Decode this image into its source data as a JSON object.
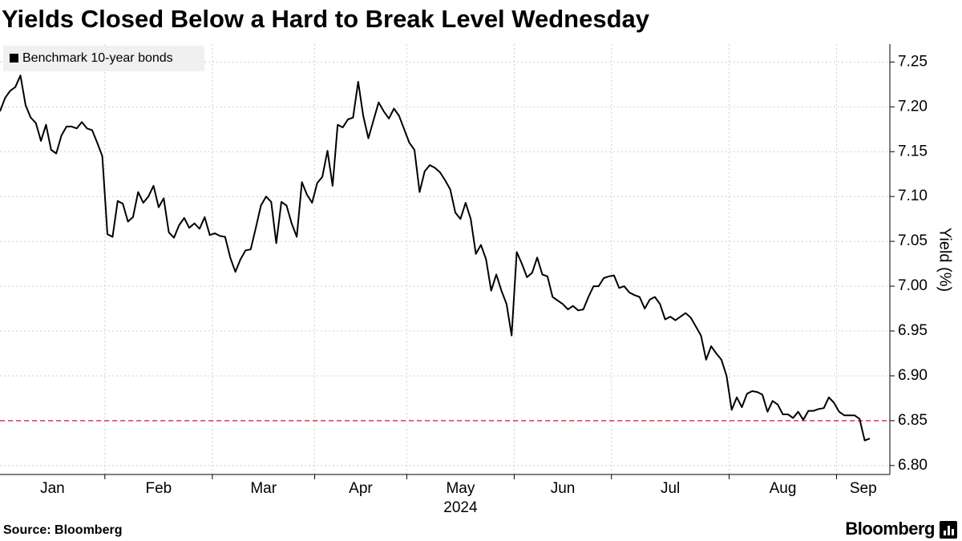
{
  "chart_data": {
    "type": "line",
    "title": "Yields Closed Below a Hard to Break Level Wednesday",
    "categories": [
      "Jan",
      "Feb",
      "Mar",
      "Apr",
      "May",
      "Jun",
      "Jul",
      "Aug",
      "Sep"
    ],
    "year_label": "2024",
    "ylabel": "Yield (%)",
    "ylim": [
      6.79,
      7.27
    ],
    "yticks": [
      {
        "value": 6.8,
        "label": "6.80"
      },
      6.85,
      {
        "value": 6.9,
        "label": "6.90"
      },
      6.95,
      {
        "value": 7,
        "label": "7.00"
      },
      7.05,
      {
        "value": 7.1,
        "label": "7.10"
      },
      7.15,
      {
        "value": 7.2,
        "label": "7.20"
      },
      7.25
    ],
    "grid": true,
    "reference_line": {
      "value": 6.85,
      "color": "#e8384f"
    },
    "legend": "top-left",
    "series": [
      {
        "name": "Benchmark 10-year bonds",
        "color": "#000000",
        "values": [
          [
            7.195,
            7.21,
            7.218,
            7.222,
            7.235,
            7.202,
            7.188,
            7.182,
            7.162,
            7.18,
            7.152,
            7.148,
            7.168,
            7.178,
            7.178,
            7.176,
            7.183,
            7.176,
            7.174,
            7.16,
            7.145
          ],
          [
            7.058,
            7.055,
            7.095,
            7.092,
            7.072,
            7.077,
            7.105,
            7.093,
            7.1,
            7.112,
            7.088,
            7.098,
            7.06,
            7.054,
            7.068,
            7.076,
            7.065,
            7.07,
            7.064,
            7.077,
            7.057
          ],
          [
            7.059,
            7.056,
            7.055,
            7.032,
            7.016,
            7.03,
            7.04,
            7.041,
            7.065,
            7.09,
            7.1,
            7.094,
            7.048,
            7.094,
            7.09,
            7.07,
            7.055,
            7.116,
            7.102,
            7.093
          ],
          [
            7.115,
            7.122,
            7.151,
            7.112,
            7.18,
            7.177,
            7.186,
            7.188,
            7.228,
            7.19,
            7.165,
            7.185,
            7.205,
            7.195,
            7.187,
            7.198,
            7.19,
            7.175
          ],
          [
            7.16,
            7.152,
            7.105,
            7.128,
            7.135,
            7.132,
            7.127,
            7.118,
            7.108,
            7.082,
            7.075,
            7.093,
            7.075,
            7.036,
            7.046,
            7.03,
            6.995,
            7.013,
            6.995,
            6.98,
            6.945
          ],
          [
            7.038,
            7.025,
            7.01,
            7.015,
            7.032,
            7.013,
            7.011,
            6.988,
            6.984,
            6.98,
            6.974,
            6.978,
            6.973,
            6.974,
            6.988,
            7.0,
            7.0,
            7.009,
            7.011
          ],
          [
            7.012,
            6.998,
            7.0,
            6.993,
            6.99,
            6.988,
            6.975,
            6.985,
            6.988,
            6.98,
            6.963,
            6.966,
            6.962,
            6.966,
            6.97,
            6.965,
            6.955,
            6.945,
            6.918,
            6.933,
            6.925,
            6.918,
            6.9
          ],
          [
            6.862,
            6.876,
            6.865,
            6.88,
            6.883,
            6.882,
            6.879,
            6.86,
            6.872,
            6.868,
            6.857,
            6.857,
            6.853,
            6.86,
            6.851,
            6.861,
            6.861,
            6.863,
            6.864,
            6.876,
            6.87
          ],
          [
            6.86,
            6.856,
            6.856,
            6.856,
            6.852,
            6.828,
            6.83
          ]
        ]
      }
    ],
    "source": "Source: Bloomberg",
    "brand": "Bloomberg"
  }
}
